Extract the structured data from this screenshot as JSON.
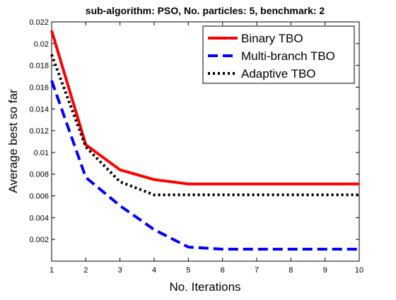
{
  "chart_data": {
    "type": "line",
    "title": "sub-algorithm: PSO, No. particles: 5, benchmark: 2",
    "xlabel": "No. Iterations",
    "ylabel": "Average best so far",
    "xlim": [
      1,
      10
    ],
    "ylim": [
      0,
      0.022
    ],
    "x": [
      1,
      2,
      3,
      4,
      5,
      6,
      7,
      8,
      9,
      10
    ],
    "xticks": [
      "1",
      "2",
      "3",
      "4",
      "5",
      "6",
      "7",
      "8",
      "9",
      "10"
    ],
    "yticks": [
      "0.002",
      "0.004",
      "0.006",
      "0.008",
      "0.01",
      "0.012",
      "0.014",
      "0.016",
      "0.018",
      "0.02",
      "0.022"
    ],
    "ytick_values": [
      0.002,
      0.004,
      0.006,
      0.008,
      0.01,
      0.012,
      0.014,
      0.016,
      0.018,
      0.02,
      0.022
    ],
    "grid": false,
    "legend_position": "top-right",
    "series": [
      {
        "name": "Binary TBO",
        "color": "#ff0000",
        "style": "solid",
        "values": [
          0.0212,
          0.0107,
          0.0084,
          0.0075,
          0.0071,
          0.0071,
          0.0071,
          0.0071,
          0.0071,
          0.0071
        ]
      },
      {
        "name": "Multi-branch TBO",
        "color": "#0000ff",
        "style": "dashed",
        "values": [
          0.0166,
          0.0077,
          0.0051,
          0.0029,
          0.0013,
          0.0011,
          0.0011,
          0.0011,
          0.0011,
          0.0011
        ]
      },
      {
        "name": "Adaptive TBO",
        "color": "#000000",
        "style": "dotted",
        "values": [
          0.019,
          0.0105,
          0.0073,
          0.0061,
          0.0061,
          0.0061,
          0.0061,
          0.0061,
          0.0061,
          0.0061
        ]
      }
    ]
  }
}
